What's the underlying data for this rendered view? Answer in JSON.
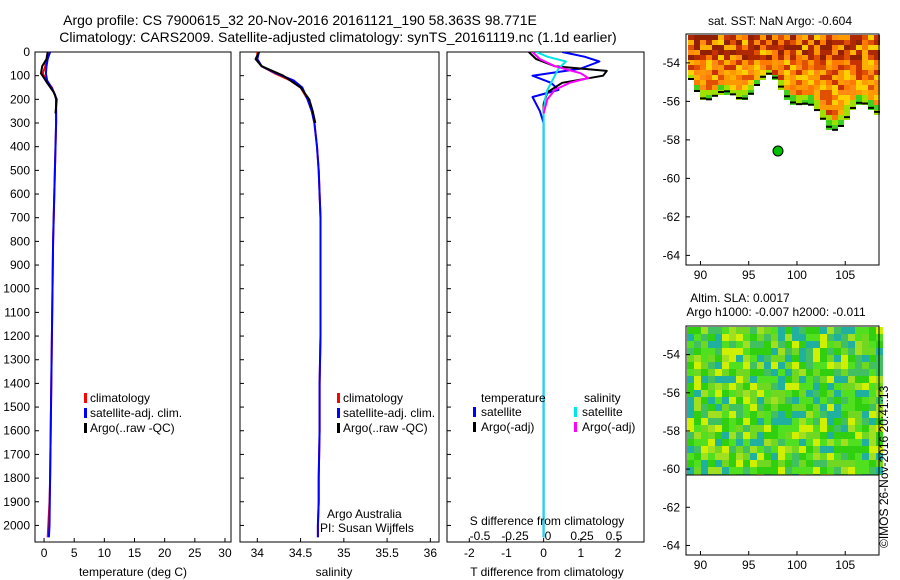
{
  "title": {
    "line1": "Argo profile: CS 7900615_32 20-Nov-2016 20161121_190 58.363S 98.771E",
    "line2": "Climatology: CARS2009. Satellite-adjusted climatology: synTS_20161119.nc (1.1d earlier)"
  },
  "colors": {
    "climatology": "#ff0000",
    "satellite": "#0000ff",
    "argo": "#000000",
    "sal_satellite": "#00e5e5",
    "sal_argo": "#ff00ff"
  },
  "chart_data": [
    {
      "type": "line",
      "id": "temperature",
      "xlabel": "temperature (deg C)",
      "ylim": [
        2070,
        0
      ],
      "xlim": [
        -1.5,
        31
      ],
      "xticks": [
        0,
        5,
        10,
        15,
        20,
        25,
        30
      ],
      "yticks": [
        0,
        100,
        200,
        300,
        400,
        500,
        600,
        700,
        800,
        900,
        1000,
        1100,
        1200,
        1300,
        1400,
        1500,
        1600,
        1700,
        1800,
        1900,
        2000
      ],
      "legend": [
        "climatology",
        "satellite-adj. clim.",
        "Argo(..raw -QC)"
      ],
      "series": [
        {
          "name": "climatology",
          "x": [
            0.6,
            0.5,
            0.3,
            0.2,
            -0.2,
            0.4,
            1.3,
            1.8,
            2.0,
            2.0,
            2.0,
            1.9,
            1.8,
            1.7,
            1.6,
            1.5,
            1.4,
            1.3,
            1.2,
            1.1,
            1.0,
            0.9,
            0.7,
            0.6
          ],
          "y": [
            0,
            20,
            40,
            60,
            90,
            120,
            150,
            180,
            200,
            250,
            300,
            400,
            500,
            600,
            700,
            800,
            1000,
            1200,
            1400,
            1600,
            1800,
            1900,
            2000,
            2050
          ]
        },
        {
          "name": "satellite-adj. clim.",
          "x": [
            1.0,
            0.6,
            0.4,
            0.3,
            0.5,
            1.2,
            1.8,
            2.0,
            2.0,
            2.0,
            1.9,
            1.8,
            1.7,
            1.6,
            1.5,
            1.4,
            1.3,
            1.2,
            1.1,
            1.0,
            0.9,
            0.8
          ],
          "y": [
            0,
            30,
            60,
            90,
            120,
            150,
            180,
            200,
            250,
            300,
            400,
            500,
            600,
            700,
            800,
            1000,
            1200,
            1400,
            1600,
            1800,
            2000,
            2050
          ]
        },
        {
          "name": "Argo(..raw -QC)",
          "x": [
            0.6,
            0.4,
            -0.3,
            -0.5,
            0.5,
            1.6,
            2.1,
            2.0,
            1.9
          ],
          "y": [
            0,
            30,
            60,
            90,
            130,
            170,
            200,
            230,
            260
          ]
        }
      ]
    },
    {
      "type": "line",
      "id": "salinity",
      "xlabel": "salinity",
      "ylim": [
        2070,
        0
      ],
      "xlim": [
        33.8,
        36.1
      ],
      "xticks": [
        34,
        34.5,
        35,
        35.5,
        36
      ],
      "legend": [
        "climatology",
        "satellite-adj. clim.",
        "Argo(..raw -QC)"
      ],
      "annotation": [
        "Argo Australia",
        "PI: Susan Wijffels"
      ],
      "series": [
        {
          "name": "climatology",
          "x": [
            34.0,
            34.0,
            34.05,
            34.2,
            34.38,
            34.5,
            34.58,
            34.63,
            34.66,
            34.69,
            34.71,
            34.72,
            34.73,
            34.73,
            34.73,
            34.73,
            34.72,
            34.72,
            34.71,
            34.71,
            34.7,
            34.7
          ],
          "y": [
            0,
            30,
            60,
            90,
            120,
            150,
            200,
            250,
            300,
            400,
            500,
            600,
            700,
            800,
            1000,
            1200,
            1400,
            1600,
            1800,
            1900,
            2000,
            2050
          ]
        },
        {
          "name": "satellite-adj. clim.",
          "x": [
            34.02,
            34.0,
            34.05,
            34.22,
            34.42,
            34.52,
            34.58,
            34.63,
            34.66,
            34.69,
            34.71,
            34.72,
            34.73,
            34.73,
            34.73,
            34.73,
            34.72,
            34.72,
            34.71,
            34.71,
            34.7,
            34.7
          ],
          "y": [
            0,
            30,
            60,
            90,
            120,
            150,
            200,
            250,
            300,
            400,
            500,
            600,
            700,
            800,
            1000,
            1200,
            1400,
            1600,
            1800,
            1900,
            2000,
            2050
          ]
        },
        {
          "name": "Argo(..raw -QC)",
          "x": [
            34.02,
            33.98,
            34.05,
            34.3,
            34.5,
            34.6,
            34.64,
            34.67
          ],
          "y": [
            0,
            30,
            60,
            100,
            150,
            200,
            250,
            300
          ]
        }
      ]
    },
    {
      "type": "line",
      "id": "differences",
      "xlabel": "T difference from climatology",
      "top_axis_label": "S difference from climatology",
      "xlim": [
        -2.6,
        2.7
      ],
      "xticks": [
        -2,
        -1,
        0,
        1,
        2
      ],
      "top_xticks": [
        "-0.5",
        "-0.25",
        "0",
        "0.25",
        "0.5"
      ],
      "legend_titles": [
        "temperature",
        "salinity"
      ],
      "legend": [
        "satellite",
        "Argo(-adj)",
        "satellite",
        "Argo(-adj)"
      ],
      "series": [
        {
          "name": "satellite",
          "x": [
            0.5,
            1.1,
            1.5,
            1.0,
            -0.3,
            0.2,
            0.4,
            -0.3,
            -0.1,
            0.0,
            0.0,
            0.0,
            0.0,
            0.0,
            0.0,
            0.0
          ],
          "y": [
            0,
            20,
            40,
            70,
            100,
            130,
            160,
            190,
            250,
            300,
            500,
            800,
            1200,
            1600,
            2000,
            2050
          ]
        },
        {
          "name": "Argo(-adj)",
          "x": [
            -0.4,
            -0.2,
            0.3,
            1.7,
            1.6,
            0.5,
            0.1,
            0.0,
            0.0
          ],
          "y": [
            0,
            30,
            60,
            80,
            100,
            130,
            170,
            220,
            260
          ]
        },
        {
          "name": "satellite",
          "x": [
            -0.2,
            0.1,
            0.6,
            0.4,
            0.3,
            0.2,
            0.1,
            0.05,
            0.0,
            0.0,
            0.0,
            0.0,
            0.0,
            0.0
          ],
          "y": [
            0,
            20,
            40,
            70,
            100,
            130,
            160,
            190,
            250,
            400,
            800,
            1200,
            1600,
            2050
          ]
        },
        {
          "name": "Argo(-adj)",
          "x": [
            -0.3,
            -0.1,
            0.3,
            1.0,
            1.2,
            0.7,
            0.3,
            0.1,
            0.0
          ],
          "y": [
            0,
            30,
            60,
            90,
            110,
            130,
            160,
            200,
            260
          ]
        }
      ]
    },
    {
      "type": "heatmap",
      "id": "sst_map",
      "title": "sat. SST: NaN Argo: -0.604",
      "xlim": [
        88.5,
        108.5
      ],
      "ylim": [
        -64.5,
        -52.5
      ],
      "xticks": [
        90,
        95,
        100,
        105
      ],
      "yticks": [
        -54,
        -56,
        -58,
        -60,
        -62,
        -64
      ],
      "argo_position": {
        "lon": 98.771,
        "lat": -58.363
      }
    },
    {
      "type": "heatmap",
      "id": "sla_map",
      "title": "Altim. SLA: 0.0017",
      "subtitle": "Argo h1000: -0.007 h2000: -0.011",
      "xlim": [
        88.5,
        108.5
      ],
      "ylim": [
        -64.5,
        -52.5
      ],
      "xticks": [
        90,
        95,
        100,
        105
      ],
      "yticks": [
        -54,
        -56,
        -58,
        -60,
        -62,
        -64
      ]
    }
  ],
  "footer": {
    "stamp": "©IMOS 26-Nov-2016 20:41:13"
  }
}
